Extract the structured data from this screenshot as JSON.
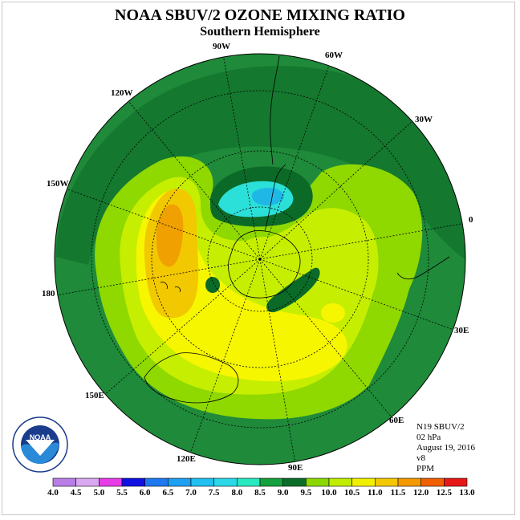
{
  "header": {
    "title": "NOAA SBUV/2 OZONE MIXING RATIO",
    "subtitle": "Southern Hemisphere"
  },
  "map": {
    "projection": "polar stereographic, South Pole centered",
    "longitude_labels": [
      "90W",
      "60W",
      "30W",
      "0",
      "30E",
      "60E",
      "90E",
      "120E",
      "150E",
      "180",
      "150W",
      "120W"
    ],
    "fill_colors": {
      "background": "#1f8a3a",
      "level_8_5": "#0a7a2e",
      "level_9_0": "#0b6a27",
      "level_9_5": "#8fd800",
      "level_10_0": "#c6ee00",
      "level_10_5": "#f6f600",
      "level_11_0": "#f2c800",
      "level_11_5": "#f0a000",
      "level_7_5": "#2be0d8",
      "level_7_0": "#1fb8e6"
    }
  },
  "metadata": {
    "satellite": "N19 SBUV/2",
    "level": "02 hPa",
    "date": "August 19, 2016",
    "version": "v8",
    "units": "PPM"
  },
  "colorbar": {
    "labels": [
      "4.0",
      "4.5",
      "5.0",
      "5.5",
      "6.0",
      "6.5",
      "7.0",
      "7.5",
      "8.0",
      "8.5",
      "9.0",
      "9.5",
      "10.0",
      "10.5",
      "11.0",
      "11.5",
      "12.0",
      "12.5",
      "13.0"
    ],
    "colors": [
      "#b87ee6",
      "#d8a8f0",
      "#e83ce8",
      "#1010e0",
      "#1e78f0",
      "#1ea0f0",
      "#20c0f0",
      "#2ad8e8",
      "#28e8c0",
      "#14a03c",
      "#0a6e28",
      "#8ad800",
      "#c0ec00",
      "#f0f000",
      "#f4c800",
      "#f49800",
      "#f06000",
      "#e81818",
      "#8a5a40"
    ]
  },
  "logo": {
    "text": "NOAA",
    "ring_text": "NATIONAL OCEANIC AND ATMOSPHERIC ADMINISTRATION · U.S. DEPARTMENT OF COMMERCE"
  }
}
